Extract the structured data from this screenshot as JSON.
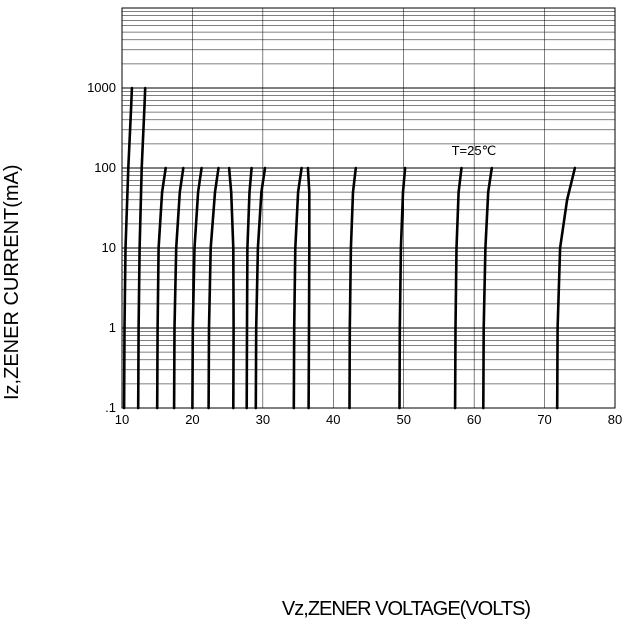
{
  "chart_data": {
    "type": "line",
    "title": "",
    "xlabel": "Vz,ZENER VOLTAGE(VOLTS)",
    "ylabel": "Iz,ZENER CURRENT(mA)",
    "xlim": [
      10,
      80
    ],
    "ylim": [
      0.1,
      10000
    ],
    "yscale": "log",
    "x_ticks": [
      10,
      20,
      30,
      40,
      50,
      60,
      70,
      80
    ],
    "x_tick_labels": [
      "10",
      "20",
      "30",
      "40",
      "50",
      "60",
      "70",
      "80"
    ],
    "y_ticks": [
      0.1,
      1,
      10,
      100,
      1000
    ],
    "y_tick_labels": [
      ".1",
      "1",
      "10",
      "100",
      "1000"
    ],
    "grid": true,
    "annotation": "T=25℃",
    "series": [
      {
        "points": [
          [
            10.3,
            0.1
          ],
          [
            10.35,
            1
          ],
          [
            10.5,
            10
          ],
          [
            10.9,
            100
          ],
          [
            11.3,
            600
          ],
          [
            11.4,
            1000
          ]
        ]
      },
      {
        "points": [
          [
            12.3,
            0.1
          ],
          [
            12.35,
            1
          ],
          [
            12.5,
            10
          ],
          [
            12.8,
            100
          ],
          [
            13.2,
            600
          ],
          [
            13.3,
            1000
          ]
        ]
      },
      {
        "points": [
          [
            15.0,
            0.1
          ],
          [
            15.05,
            1
          ],
          [
            15.2,
            10
          ],
          [
            15.7,
            50
          ],
          [
            16.2,
            100
          ]
        ]
      },
      {
        "points": [
          [
            17.4,
            0.1
          ],
          [
            17.45,
            1
          ],
          [
            17.7,
            10
          ],
          [
            18.2,
            50
          ],
          [
            18.7,
            100
          ]
        ]
      },
      {
        "points": [
          [
            20.0,
            0.1
          ],
          [
            20.05,
            1
          ],
          [
            20.3,
            10
          ],
          [
            20.8,
            50
          ],
          [
            21.3,
            100
          ]
        ]
      },
      {
        "points": [
          [
            22.3,
            0.1
          ],
          [
            22.35,
            1
          ],
          [
            22.6,
            10
          ],
          [
            23.2,
            50
          ],
          [
            23.7,
            100
          ]
        ]
      },
      {
        "points": [
          [
            25.8,
            0.1
          ],
          [
            25.85,
            1
          ],
          [
            25.8,
            10
          ],
          [
            25.5,
            50
          ],
          [
            25.2,
            100
          ]
        ]
      },
      {
        "points": [
          [
            27.7,
            0.1
          ],
          [
            27.75,
            1
          ],
          [
            27.8,
            10
          ],
          [
            28.1,
            50
          ],
          [
            28.4,
            100
          ]
        ]
      },
      {
        "points": [
          [
            29.0,
            0.1
          ],
          [
            29.05,
            1
          ],
          [
            29.3,
            10
          ],
          [
            29.8,
            50
          ],
          [
            30.3,
            100
          ]
        ]
      },
      {
        "points": [
          [
            34.4,
            0.1
          ],
          [
            34.45,
            1
          ],
          [
            34.6,
            10
          ],
          [
            35.0,
            50
          ],
          [
            35.5,
            100
          ]
        ]
      },
      {
        "points": [
          [
            36.5,
            0.1
          ],
          [
            36.55,
            1
          ],
          [
            36.6,
            10
          ],
          [
            36.6,
            50
          ],
          [
            36.4,
            100
          ]
        ]
      },
      {
        "points": [
          [
            42.3,
            0.1
          ],
          [
            42.35,
            1
          ],
          [
            42.5,
            10
          ],
          [
            42.8,
            50
          ],
          [
            43.2,
            100
          ]
        ]
      },
      {
        "points": [
          [
            49.4,
            0.1
          ],
          [
            49.45,
            1
          ],
          [
            49.6,
            10
          ],
          [
            49.9,
            50
          ],
          [
            50.2,
            100
          ]
        ]
      },
      {
        "points": [
          [
            57.3,
            0.1
          ],
          [
            57.35,
            1
          ],
          [
            57.5,
            10
          ],
          [
            57.8,
            50
          ],
          [
            58.2,
            100
          ]
        ]
      },
      {
        "points": [
          [
            61.3,
            0.1
          ],
          [
            61.35,
            1
          ],
          [
            61.6,
            10
          ],
          [
            62.0,
            50
          ],
          [
            62.5,
            100
          ]
        ]
      },
      {
        "points": [
          [
            71.8,
            0.1
          ],
          [
            71.85,
            1
          ],
          [
            72.2,
            10
          ],
          [
            73.2,
            40
          ],
          [
            74.3,
            100
          ]
        ]
      }
    ]
  }
}
